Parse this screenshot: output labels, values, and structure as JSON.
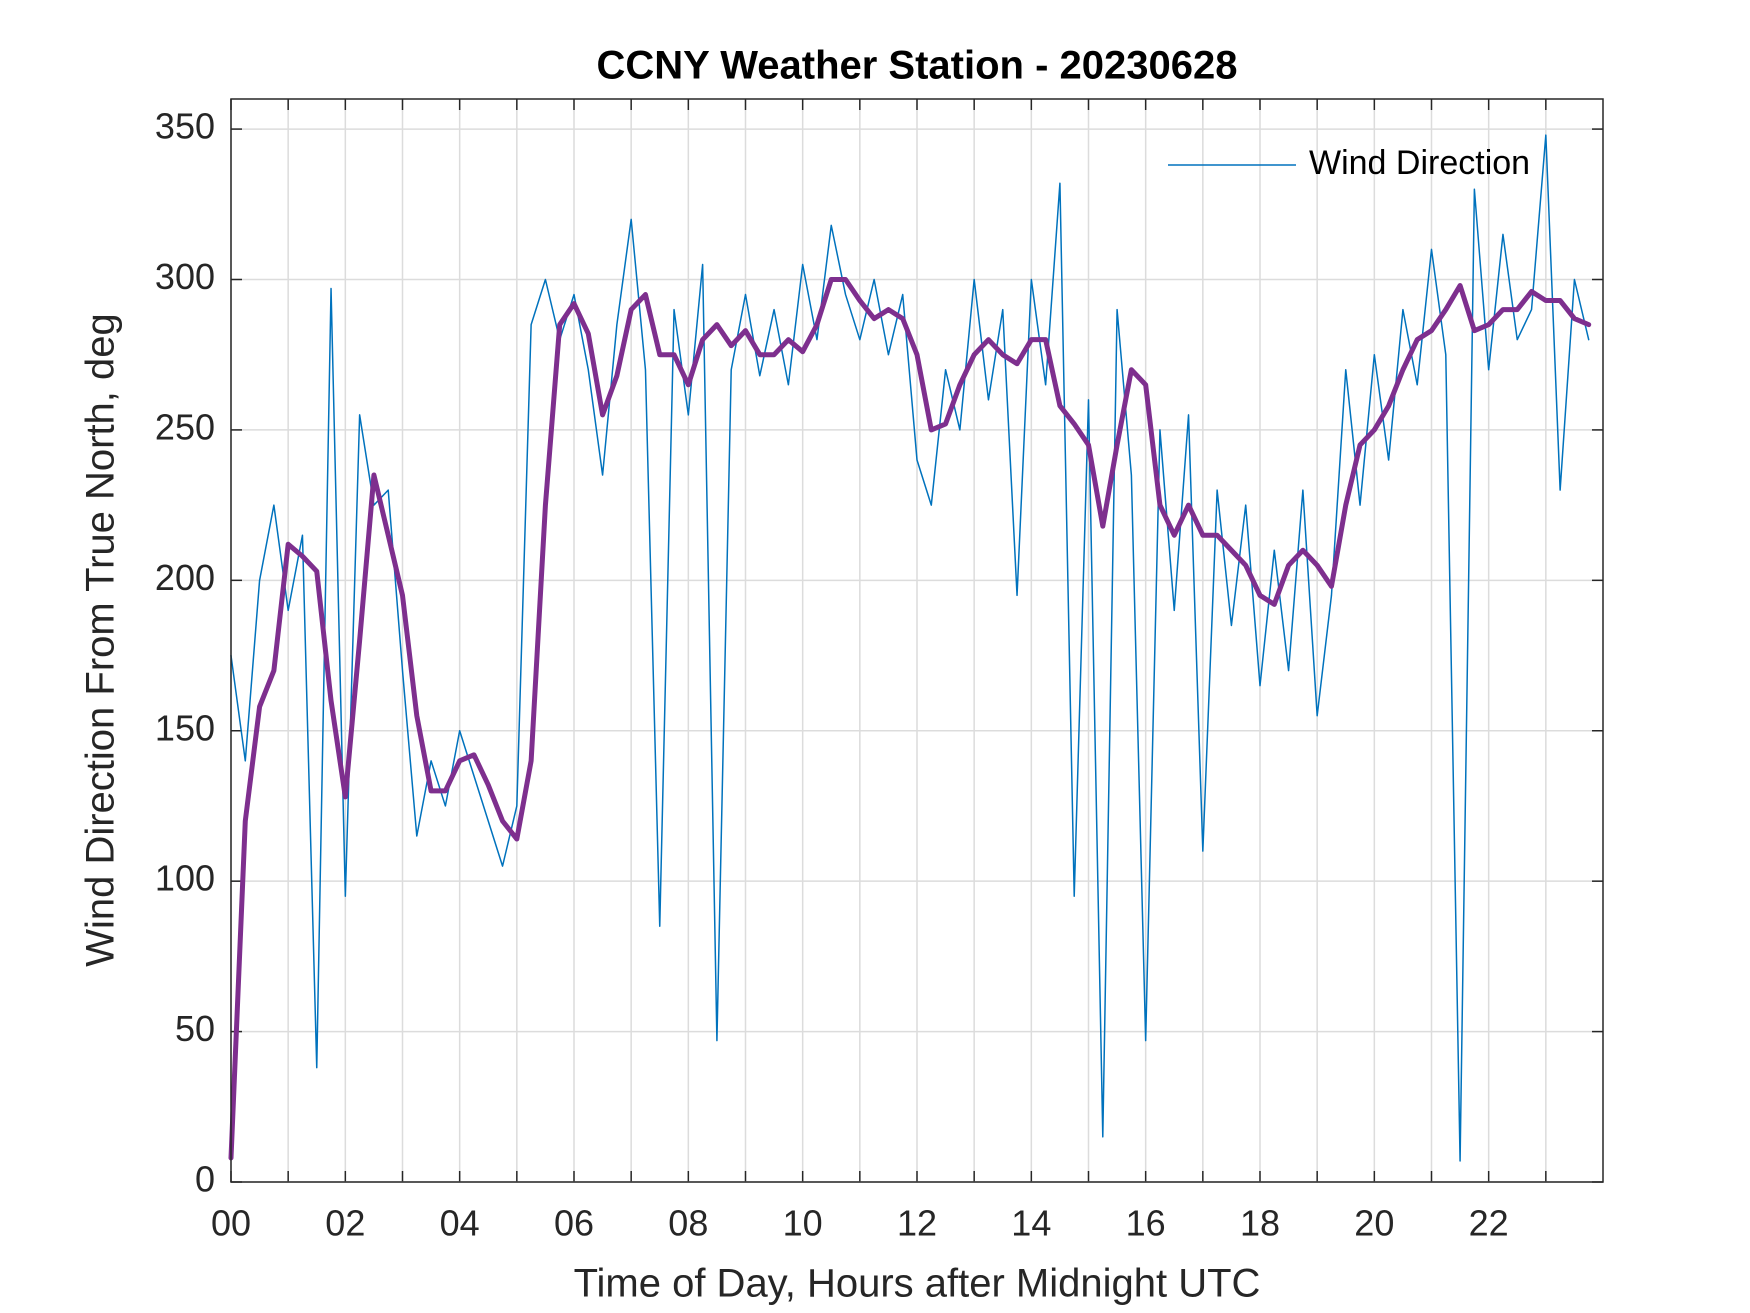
{
  "chart_data": {
    "type": "line",
    "title": "CCNY Weather Station - 20230628",
    "xlabel": "Time of Day, Hours after Midnight UTC",
    "ylabel": "Wind Direction From True North, deg",
    "xlim": [
      0,
      24
    ],
    "ylim": [
      0,
      360
    ],
    "xticks": [
      {
        "value": 0,
        "label": "00"
      },
      {
        "value": 2,
        "label": "02"
      },
      {
        "value": 4,
        "label": "04"
      },
      {
        "value": 6,
        "label": "06"
      },
      {
        "value": 8,
        "label": "08"
      },
      {
        "value": 10,
        "label": "10"
      },
      {
        "value": 12,
        "label": "12"
      },
      {
        "value": 14,
        "label": "14"
      },
      {
        "value": 16,
        "label": "16"
      },
      {
        "value": 18,
        "label": "18"
      },
      {
        "value": 20,
        "label": "20"
      },
      {
        "value": 22,
        "label": "22"
      }
    ],
    "xminor_ticks": [
      1,
      3,
      5,
      7,
      9,
      11,
      13,
      15,
      17,
      19,
      21,
      23
    ],
    "yticks": [
      0,
      50,
      100,
      150,
      200,
      250,
      300,
      350
    ],
    "grid": true,
    "legend": "northeast",
    "x": [
      0,
      0.25,
      0.5,
      0.75,
      1,
      1.25,
      1.5,
      1.75,
      2,
      2.25,
      2.5,
      2.75,
      3,
      3.25,
      3.5,
      3.75,
      4,
      4.25,
      4.5,
      4.75,
      5,
      5.25,
      5.5,
      5.75,
      6,
      6.25,
      6.5,
      6.75,
      7,
      7.25,
      7.5,
      7.75,
      8,
      8.25,
      8.5,
      8.75,
      9,
      9.25,
      9.5,
      9.75,
      10,
      10.25,
      10.5,
      10.75,
      11,
      11.25,
      11.5,
      11.75,
      12,
      12.25,
      12.5,
      12.75,
      13,
      13.25,
      13.5,
      13.75,
      14,
      14.25,
      14.5,
      14.75,
      15,
      15.25,
      15.5,
      15.75,
      16,
      16.25,
      16.5,
      16.75,
      17,
      17.25,
      17.5,
      17.75,
      18,
      18.25,
      18.5,
      18.75,
      19,
      19.25,
      19.5,
      19.75,
      20,
      20.25,
      20.5,
      20.75,
      21,
      21.25,
      21.5,
      21.75,
      22,
      22.25,
      22.5,
      22.75,
      23,
      23.25,
      23.5,
      23.75
    ],
    "series": [
      {
        "name": "Wind Direction",
        "color": "#0072BD",
        "width": 1.5,
        "values": [
          175,
          140,
          200,
          225,
          190,
          215,
          38,
          297,
          95,
          255,
          225,
          230,
          170,
          115,
          140,
          125,
          150,
          135,
          120,
          105,
          125,
          285,
          300,
          280,
          295,
          270,
          235,
          285,
          320,
          270,
          85,
          290,
          255,
          305,
          47,
          270,
          295,
          268,
          290,
          265,
          305,
          280,
          318,
          295,
          280,
          300,
          275,
          295,
          240,
          225,
          270,
          250,
          300,
          260,
          290,
          195,
          300,
          265,
          332,
          95,
          260,
          15,
          290,
          235,
          47,
          250,
          190,
          255,
          110,
          230,
          185,
          225,
          165,
          210,
          170,
          230,
          155,
          195,
          270,
          225,
          275,
          240,
          290,
          265,
          310,
          275,
          7,
          330,
          270,
          315,
          280,
          290,
          348,
          230,
          300,
          280
        ]
      },
      {
        "color": "#7E2F8E",
        "width": 5,
        "values": [
          8,
          120,
          158,
          170,
          212,
          208,
          203,
          160,
          128,
          180,
          235,
          215,
          195,
          155,
          130,
          130,
          140,
          142,
          132,
          120,
          114,
          140,
          225,
          285,
          292,
          282,
          255,
          268,
          290,
          295,
          275,
          275,
          265,
          280,
          285,
          278,
          283,
          275,
          275,
          280,
          276,
          285,
          300,
          300,
          293,
          287,
          290,
          287,
          275,
          250,
          252,
          265,
          275,
          280,
          275,
          272,
          280,
          280,
          258,
          252,
          245,
          218,
          245,
          270,
          265,
          225,
          215,
          225,
          215,
          215,
          210,
          205,
          195,
          192,
          205,
          210,
          205,
          198,
          225,
          245,
          250,
          258,
          270,
          280,
          283,
          290,
          298,
          283,
          285,
          290,
          290,
          296,
          293,
          293,
          287,
          285
        ]
      }
    ]
  }
}
